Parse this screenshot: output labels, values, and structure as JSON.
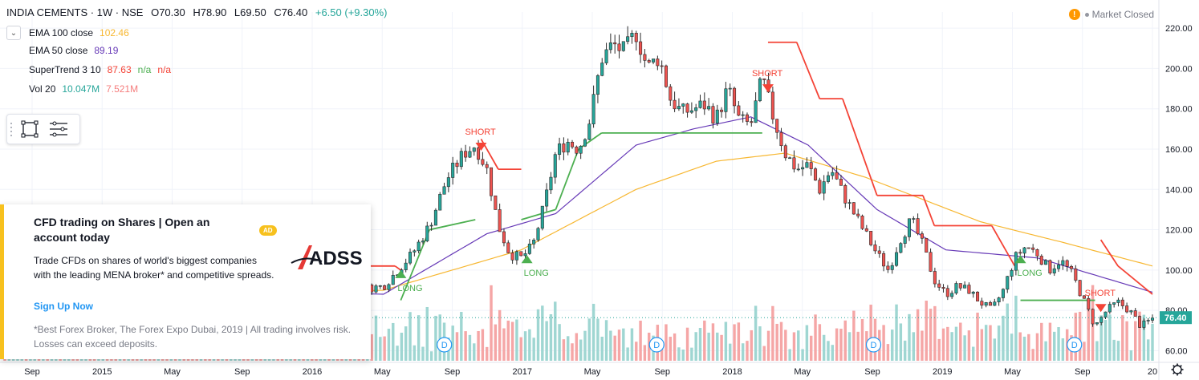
{
  "header": {
    "symbol": "INDIA CEMENTS · 1W · NSE",
    "open": "O70.30",
    "high": "H78.90",
    "low": "L69.50",
    "close": "C76.40",
    "change": "+6.50 (+9.30%)"
  },
  "indicators": [
    {
      "name": "EMA 100 close",
      "values": [
        "102.46"
      ],
      "color": "#f7b731"
    },
    {
      "name": "EMA 50 close",
      "values": [
        "89.19"
      ],
      "color": "#673ab7"
    },
    {
      "name": "SuperTrend 3 10",
      "values": [
        "87.63",
        "n/a",
        "n/a"
      ],
      "colors": [
        "#f44336",
        "#4caf50",
        "#f44336"
      ]
    },
    {
      "name": "Vol 20",
      "values": [
        "10.047M",
        "7.521M"
      ],
      "colors": [
        "#26a69a",
        "#f57c7c"
      ]
    }
  ],
  "market_status": "Market Closed",
  "icons": {
    "collapse": "chevron-down-icon",
    "warning": "warning-icon",
    "rectangle": "rectangle-tool-icon",
    "menu": "lines-menu-icon",
    "settings": "gear-icon"
  },
  "ad": {
    "title": "CFD trading on Shares | Open an account today",
    "badge": "AD",
    "brand": "ADSS",
    "body": "Trade CFDs on shares of world's biggest companies with the leading MENA broker* and competitive spreads.",
    "cta": "Sign Up Now",
    "disclaimer": "*Best Forex Broker, The Forex Expo Dubai, 2019 | All trading involves risk. Losses can exceed deposits."
  },
  "chart_data": {
    "type": "candlestick",
    "title": "",
    "x_tick_labels": [
      "Sep",
      "2015",
      "May",
      "Sep",
      "2016",
      "May",
      "Sep",
      "2017",
      "May",
      "Sep",
      "2018",
      "May",
      "Sep",
      "2019",
      "May",
      "Sep",
      "20"
    ],
    "y_tick_labels": [
      "220.00",
      "200.00",
      "180.00",
      "160.00",
      "140.00",
      "120.00",
      "100.00",
      "80.00",
      "60.00"
    ],
    "ylim": [
      55,
      228
    ],
    "last_price": "76.40",
    "grid": true,
    "price_path": [
      {
        "t": 0.0,
        "p": 98
      },
      {
        "t": 0.02,
        "p": 102
      },
      {
        "t": 0.05,
        "p": 108
      },
      {
        "t": 0.08,
        "p": 112
      },
      {
        "t": 0.11,
        "p": 106
      },
      {
        "t": 0.14,
        "p": 100
      },
      {
        "t": 0.17,
        "p": 96
      },
      {
        "t": 0.2,
        "p": 93
      },
      {
        "t": 0.24,
        "p": 90
      },
      {
        "t": 0.27,
        "p": 88
      },
      {
        "t": 0.3,
        "p": 90
      },
      {
        "t": 0.33,
        "p": 92
      },
      {
        "t": 0.355,
        "p": 108
      },
      {
        "t": 0.37,
        "p": 122
      },
      {
        "t": 0.385,
        "p": 145
      },
      {
        "t": 0.4,
        "p": 158
      },
      {
        "t": 0.41,
        "p": 162
      },
      {
        "t": 0.42,
        "p": 150
      },
      {
        "t": 0.43,
        "p": 122
      },
      {
        "t": 0.44,
        "p": 108
      },
      {
        "t": 0.45,
        "p": 106
      },
      {
        "t": 0.46,
        "p": 112
      },
      {
        "t": 0.47,
        "p": 132
      },
      {
        "t": 0.48,
        "p": 158
      },
      {
        "t": 0.49,
        "p": 164
      },
      {
        "t": 0.5,
        "p": 160
      },
      {
        "t": 0.51,
        "p": 175
      },
      {
        "t": 0.52,
        "p": 205
      },
      {
        "t": 0.53,
        "p": 212
      },
      {
        "t": 0.54,
        "p": 208
      },
      {
        "t": 0.55,
        "p": 218
      },
      {
        "t": 0.56,
        "p": 200
      },
      {
        "t": 0.57,
        "p": 206
      },
      {
        "t": 0.58,
        "p": 185
      },
      {
        "t": 0.59,
        "p": 178
      },
      {
        "t": 0.61,
        "p": 182
      },
      {
        "t": 0.62,
        "p": 175
      },
      {
        "t": 0.63,
        "p": 190
      },
      {
        "t": 0.64,
        "p": 174
      },
      {
        "t": 0.65,
        "p": 172
      },
      {
        "t": 0.66,
        "p": 195
      },
      {
        "t": 0.67,
        "p": 175
      },
      {
        "t": 0.68,
        "p": 158
      },
      {
        "t": 0.69,
        "p": 150
      },
      {
        "t": 0.7,
        "p": 152
      },
      {
        "t": 0.71,
        "p": 140
      },
      {
        "t": 0.72,
        "p": 150
      },
      {
        "t": 0.73,
        "p": 138
      },
      {
        "t": 0.74,
        "p": 128
      },
      {
        "t": 0.75,
        "p": 118
      },
      {
        "t": 0.76,
        "p": 108
      },
      {
        "t": 0.77,
        "p": 100
      },
      {
        "t": 0.78,
        "p": 115
      },
      {
        "t": 0.79,
        "p": 125
      },
      {
        "t": 0.8,
        "p": 112
      },
      {
        "t": 0.81,
        "p": 95
      },
      {
        "t": 0.82,
        "p": 88
      },
      {
        "t": 0.83,
        "p": 92
      },
      {
        "t": 0.84,
        "p": 90
      },
      {
        "t": 0.85,
        "p": 84
      },
      {
        "t": 0.86,
        "p": 80
      },
      {
        "t": 0.87,
        "p": 90
      },
      {
        "t": 0.88,
        "p": 106
      },
      {
        "t": 0.89,
        "p": 112
      },
      {
        "t": 0.9,
        "p": 108
      },
      {
        "t": 0.91,
        "p": 100
      },
      {
        "t": 0.92,
        "p": 105
      },
      {
        "t": 0.93,
        "p": 98
      },
      {
        "t": 0.94,
        "p": 85
      },
      {
        "t": 0.95,
        "p": 72
      },
      {
        "t": 0.96,
        "p": 80
      },
      {
        "t": 0.97,
        "p": 84
      },
      {
        "t": 0.98,
        "p": 80
      },
      {
        "t": 0.99,
        "p": 72
      },
      {
        "t": 1.0,
        "p": 76
      }
    ],
    "ema100": [
      {
        "t": 0.0,
        "p": 78
      },
      {
        "t": 0.2,
        "p": 88
      },
      {
        "t": 0.33,
        "p": 90
      },
      {
        "t": 0.45,
        "p": 110
      },
      {
        "t": 0.55,
        "p": 140
      },
      {
        "t": 0.62,
        "p": 154
      },
      {
        "t": 0.68,
        "p": 158
      },
      {
        "t": 0.75,
        "p": 146
      },
      {
        "t": 0.85,
        "p": 124
      },
      {
        "t": 0.92,
        "p": 114
      },
      {
        "t": 1.0,
        "p": 102
      }
    ],
    "ema50": [
      {
        "t": 0.0,
        "p": 80
      },
      {
        "t": 0.2,
        "p": 90
      },
      {
        "t": 0.33,
        "p": 88
      },
      {
        "t": 0.42,
        "p": 118
      },
      {
        "t": 0.48,
        "p": 128
      },
      {
        "t": 0.55,
        "p": 162
      },
      {
        "t": 0.6,
        "p": 170
      },
      {
        "t": 0.65,
        "p": 176
      },
      {
        "t": 0.7,
        "p": 162
      },
      {
        "t": 0.76,
        "p": 130
      },
      {
        "t": 0.82,
        "p": 110
      },
      {
        "t": 0.9,
        "p": 106
      },
      {
        "t": 1.0,
        "p": 89
      }
    ],
    "supertrend": [
      {
        "t": 0.0,
        "p": 84,
        "c": "up"
      },
      {
        "t": 0.02,
        "p": 84,
        "c": "up"
      },
      {
        "t": 0.3,
        "p": 102,
        "c": "down"
      },
      {
        "t": 0.34,
        "p": 102,
        "c": "down"
      },
      {
        "t": 0.345,
        "p": 100,
        "c": "down"
      },
      {
        "t": 0.345,
        "p": 85,
        "c": "up"
      },
      {
        "t": 0.37,
        "p": 120,
        "c": "up"
      },
      {
        "t": 0.41,
        "p": 125,
        "c": "up"
      },
      {
        "t": 0.415,
        "p": 165,
        "c": "down"
      },
      {
        "t": 0.43,
        "p": 150,
        "c": "down"
      },
      {
        "t": 0.45,
        "p": 150,
        "c": "down"
      },
      {
        "t": 0.45,
        "p": 125,
        "c": "up"
      },
      {
        "t": 0.48,
        "p": 130,
        "c": "up"
      },
      {
        "t": 0.5,
        "p": 160,
        "c": "up"
      },
      {
        "t": 0.52,
        "p": 168,
        "c": "up"
      },
      {
        "t": 0.66,
        "p": 168,
        "c": "up"
      },
      {
        "t": 0.665,
        "p": 213,
        "c": "down"
      },
      {
        "t": 0.69,
        "p": 213,
        "c": "down"
      },
      {
        "t": 0.71,
        "p": 185,
        "c": "down"
      },
      {
        "t": 0.73,
        "p": 185,
        "c": "down"
      },
      {
        "t": 0.76,
        "p": 137,
        "c": "down"
      },
      {
        "t": 0.8,
        "p": 137,
        "c": "down"
      },
      {
        "t": 0.81,
        "p": 122,
        "c": "down"
      },
      {
        "t": 0.86,
        "p": 122,
        "c": "down"
      },
      {
        "t": 0.88,
        "p": 102,
        "c": "down"
      },
      {
        "t": 0.885,
        "p": 85,
        "c": "up"
      },
      {
        "t": 0.95,
        "p": 85,
        "c": "up"
      },
      {
        "t": 0.955,
        "p": 115,
        "c": "down"
      },
      {
        "t": 0.97,
        "p": 102,
        "c": "down"
      },
      {
        "t": 1.0,
        "p": 88,
        "c": "down"
      }
    ],
    "signals": [
      {
        "t": 0.345,
        "label": "LONG",
        "type": "long"
      },
      {
        "t": 0.415,
        "label": "SHORT",
        "type": "short"
      },
      {
        "t": 0.455,
        "label": "LONG",
        "type": "long"
      },
      {
        "t": 0.665,
        "label": "SHORT",
        "type": "short"
      },
      {
        "t": 0.885,
        "label": "LONG",
        "type": "long"
      },
      {
        "t": 0.955,
        "label": "SHORT",
        "type": "short"
      }
    ],
    "dividend_markers": [
      {
        "t": 0.224,
        "label": "D"
      },
      {
        "t": 0.383,
        "label": "D"
      },
      {
        "t": 0.568,
        "label": "D"
      },
      {
        "t": 0.757,
        "label": "D"
      },
      {
        "t": 0.932,
        "label": "D"
      }
    ],
    "colors": {
      "up": "#26a69a",
      "down": "#ef5350",
      "vol_up": "#9fd6d2",
      "vol_down": "#f5a6a6",
      "ema100": "#f7b731",
      "ema50": "#673ab7",
      "st_up": "#4caf50",
      "st_down": "#f44336"
    }
  }
}
